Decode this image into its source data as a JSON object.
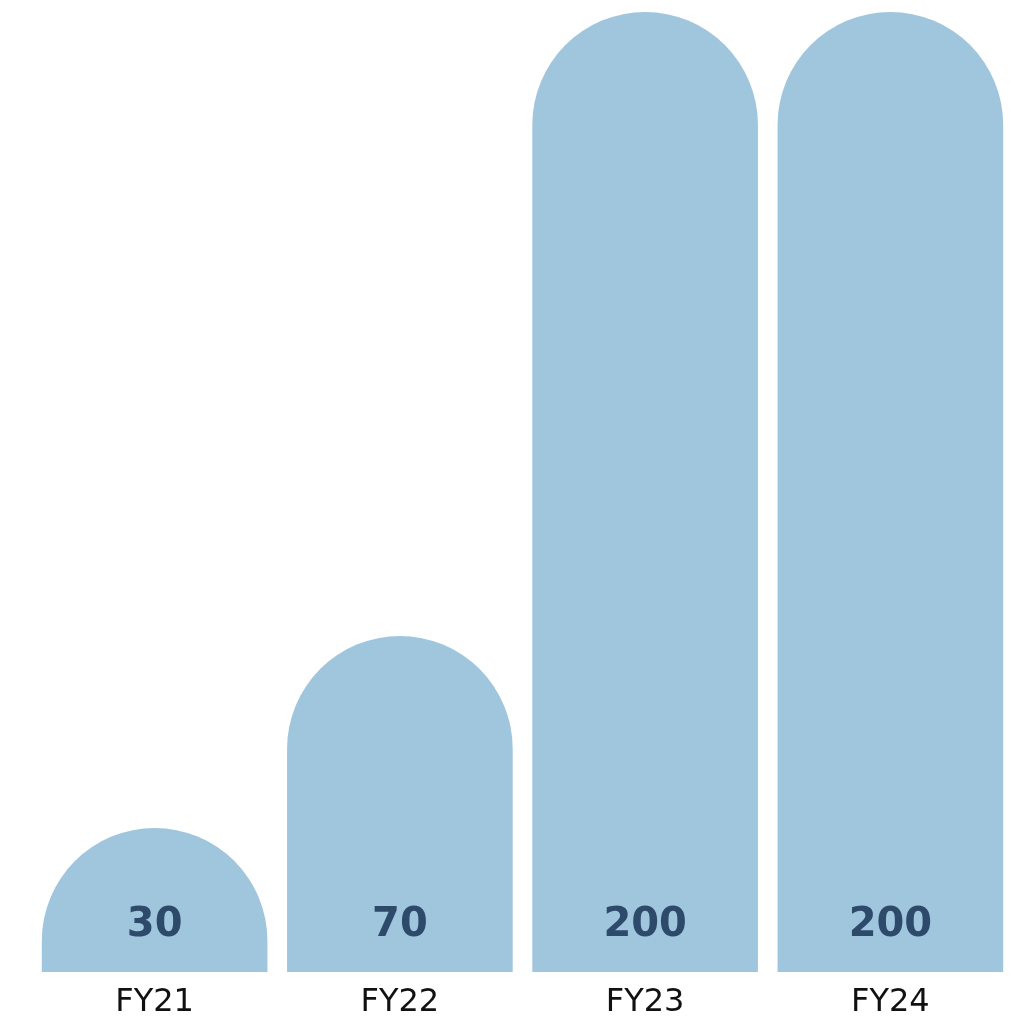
{
  "chart_data": {
    "type": "bar",
    "categories": [
      "FY21",
      "FY22",
      "FY23",
      "FY24"
    ],
    "values": [
      30,
      70,
      200,
      200
    ],
    "color": "#a0c6dd",
    "data_labels": true
  }
}
